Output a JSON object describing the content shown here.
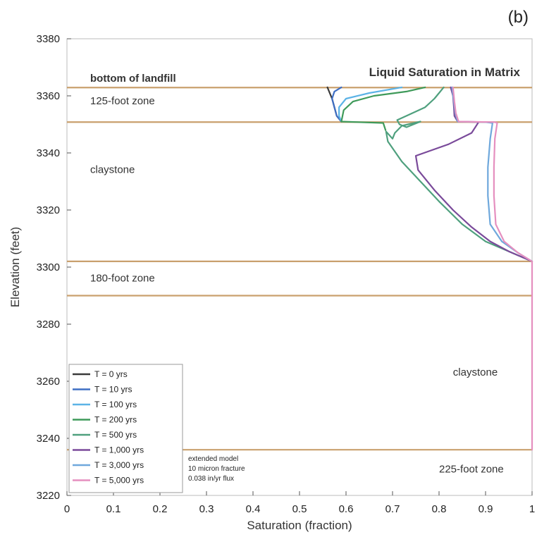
{
  "chart_data": {
    "type": "line",
    "panel_label": "(b)",
    "title": "Liquid Saturation in Matrix",
    "xlabel": "Saturation (fraction)",
    "ylabel": "Elevation (feet)",
    "xlim": [
      0,
      1
    ],
    "ylim": [
      3220,
      3380
    ],
    "x_ticks": [
      0,
      0.1,
      0.2,
      0.3,
      0.4,
      0.5,
      0.6,
      0.7,
      0.8,
      0.9,
      1
    ],
    "x_tick_labels": [
      "0",
      "0.1",
      "0.2",
      "0.3",
      "0.4",
      "0.5",
      "0.6",
      "0.7",
      "0.8",
      "0.9",
      "1"
    ],
    "y_ticks": [
      3220,
      3240,
      3260,
      3280,
      3300,
      3320,
      3340,
      3360,
      3380
    ],
    "y_tick_labels": [
      "3220",
      "3240",
      "3260",
      "3280",
      "3300",
      "3320",
      "3340",
      "3360",
      "3380"
    ],
    "grid": false,
    "legend_position": "bottom-left",
    "boundary_color": "#c9a06e",
    "boundaries": [
      3362.9,
      3350.8,
      3302,
      3290,
      3236
    ],
    "zone_labels": [
      {
        "text": "bottom of landfill",
        "x": 0.05,
        "y": 3365,
        "bold": true
      },
      {
        "text": "125-foot zone",
        "x": 0.05,
        "y": 3357,
        "bold": false
      },
      {
        "text": "claystone",
        "x": 0.05,
        "y": 3333,
        "bold": false
      },
      {
        "text": "180-foot zone",
        "x": 0.05,
        "y": 3295,
        "bold": false
      },
      {
        "text": "claystone",
        "x": 0.83,
        "y": 3262,
        "bold": false
      },
      {
        "text": "225-foot zone",
        "x": 0.8,
        "y": 3228,
        "bold": false
      }
    ],
    "note_lines": [
      "extended model",
      "10 micron fracture",
      "0.038 in/yr flux"
    ],
    "series": [
      {
        "name": "T = 0 yrs",
        "color": "#3a3a3a",
        "points": [
          [
            0.56,
            3363
          ],
          [
            0.565,
            3361
          ],
          [
            0.57,
            3359
          ],
          [
            0.575,
            3356
          ],
          [
            0.58,
            3353
          ],
          [
            0.59,
            3351
          ]
        ]
      },
      {
        "name": "T = 10 yrs",
        "color": "#3f6fc4",
        "points": [
          [
            0.59,
            3363
          ],
          [
            0.575,
            3361.5
          ],
          [
            0.57,
            3359
          ],
          [
            0.575,
            3356
          ],
          [
            0.58,
            3353
          ],
          [
            0.59,
            3351
          ]
        ]
      },
      {
        "name": "T = 100 yrs",
        "color": "#5cb3e6",
        "points": [
          [
            0.72,
            3363
          ],
          [
            0.65,
            3361
          ],
          [
            0.6,
            3359
          ],
          [
            0.585,
            3356
          ],
          [
            0.585,
            3353
          ],
          [
            0.59,
            3351
          ]
        ]
      },
      {
        "name": "T = 200 yrs",
        "color": "#3f9a5a",
        "points": [
          [
            0.77,
            3363
          ],
          [
            0.73,
            3361.5
          ],
          [
            0.66,
            3360
          ],
          [
            0.615,
            3358
          ],
          [
            0.595,
            3355
          ],
          [
            0.59,
            3351
          ],
          [
            0.68,
            3350.5
          ],
          [
            0.685,
            3348
          ]
        ]
      },
      {
        "name": "T = 500 yrs",
        "color": "#4fa07e",
        "points": [
          [
            0.81,
            3363
          ],
          [
            0.8,
            3361
          ],
          [
            0.79,
            3359
          ],
          [
            0.77,
            3356
          ],
          [
            0.73,
            3353
          ],
          [
            0.71,
            3351.5
          ],
          [
            0.715,
            3350
          ],
          [
            0.73,
            3349
          ],
          [
            0.76,
            3351
          ],
          [
            0.72,
            3349.5
          ],
          [
            0.705,
            3347
          ],
          [
            0.7,
            3345
          ],
          [
            0.686,
            3347.5
          ],
          [
            0.69,
            3344
          ],
          [
            0.72,
            3337
          ],
          [
            0.76,
            3330
          ],
          [
            0.8,
            3323
          ],
          [
            0.85,
            3315
          ],
          [
            0.9,
            3309
          ],
          [
            0.95,
            3305.5
          ],
          [
            1.0,
            3302
          ]
        ]
      },
      {
        "name": "T = 1,000 yrs",
        "color": "#7a4a9a",
        "points": [
          [
            0.825,
            3363
          ],
          [
            0.83,
            3360
          ],
          [
            0.832,
            3356
          ],
          [
            0.833,
            3353
          ],
          [
            0.84,
            3351
          ],
          [
            0.885,
            3350.8
          ],
          [
            0.87,
            3347
          ],
          [
            0.82,
            3343
          ],
          [
            0.75,
            3339
          ],
          [
            0.755,
            3334
          ],
          [
            0.79,
            3327
          ],
          [
            0.83,
            3320
          ],
          [
            0.87,
            3314
          ],
          [
            0.91,
            3309
          ],
          [
            0.95,
            3305.5
          ],
          [
            1.0,
            3302
          ]
        ]
      },
      {
        "name": "T = 3,000 yrs",
        "color": "#6fa8dc",
        "points": [
          [
            0.828,
            3363
          ],
          [
            0.832,
            3358
          ],
          [
            0.835,
            3354
          ],
          [
            0.84,
            3351
          ],
          [
            0.9,
            3350.8
          ],
          [
            0.915,
            3350.5
          ],
          [
            0.91,
            3345
          ],
          [
            0.905,
            3335
          ],
          [
            0.905,
            3325
          ],
          [
            0.91,
            3315
          ],
          [
            0.935,
            3309
          ],
          [
            0.97,
            3305
          ],
          [
            1.0,
            3302
          ]
        ]
      },
      {
        "name": "T = 5,000 yrs",
        "color": "#e58fbf",
        "points": [
          [
            0.83,
            3363
          ],
          [
            0.833,
            3358
          ],
          [
            0.836,
            3354
          ],
          [
            0.842,
            3351
          ],
          [
            0.92,
            3350.8
          ],
          [
            0.925,
            3350.5
          ],
          [
            0.92,
            3345
          ],
          [
            0.918,
            3335
          ],
          [
            0.918,
            3325
          ],
          [
            0.922,
            3315
          ],
          [
            0.94,
            3309
          ],
          [
            0.97,
            3305
          ],
          [
            1.0,
            3302
          ],
          [
            1.0,
            3290
          ],
          [
            1.0,
            3260
          ],
          [
            1.0,
            3236
          ]
        ]
      }
    ]
  }
}
